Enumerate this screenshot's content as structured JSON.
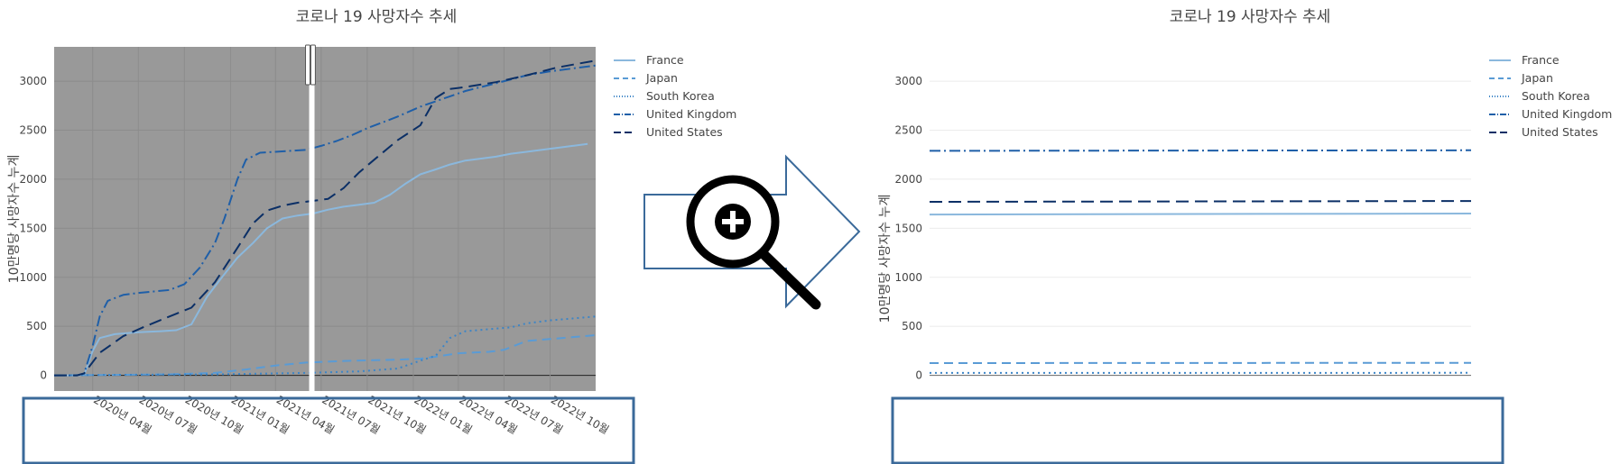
{
  "colors": {
    "background": "#ffffff",
    "plot_bg_left": "#999999",
    "grid_left": "#8c8c8c",
    "grid_right": "#ebebeb",
    "zero_line_left": "#222222",
    "zero_line_right": "#666666",
    "highlight_box": "#3b6a9a",
    "arrow": "#3b6a9a",
    "magnifier": "#000000"
  },
  "icons": [
    "zoom-in-magnifier-icon",
    "right-arrow-icon",
    "range-slider-handle-icon"
  ],
  "chart_data": [
    {
      "id": "full-range",
      "type": "line",
      "title": "코로나 19 사망자수 추세",
      "xlabel": "",
      "ylabel": "10만명당 사망자수 누계",
      "ylim": [
        -160,
        3350
      ],
      "xlim": [
        "2020-01-15",
        "2022-12-31"
      ],
      "yticks": [
        0,
        500,
        1000,
        1500,
        2000,
        2500,
        3000
      ],
      "xticks": [
        "2020-04-01",
        "2020-07-01",
        "2020-10-01",
        "2021-01-01",
        "2021-04-01",
        "2021-07-01",
        "2021-10-01",
        "2022-01-01",
        "2022-04-01",
        "2022-07-01",
        "2022-10-01"
      ],
      "xtick_labels": [
        "2020년 04월",
        "2020년 07월",
        "2020년 10월",
        "2021년 01월",
        "2021년 04월",
        "2021년 07월",
        "2021년 10월",
        "2022년 01월",
        "2022년 04월",
        "2022년 07월",
        "2022년 10월"
      ],
      "plot_background": "grey",
      "grid": true,
      "legend": "right",
      "range_selection": [
        "2021-06-07",
        "2021-06-14"
      ],
      "series": [
        {
          "name": "France",
          "color": "#8bb8dd",
          "dash": "solid",
          "x": [
            "2020-01-15",
            "2020-03-01",
            "2020-03-15",
            "2020-04-01",
            "2020-04-15",
            "2020-05-15",
            "2020-07-01",
            "2020-08-15",
            "2020-09-15",
            "2020-10-15",
            "2020-11-15",
            "2020-12-15",
            "2021-01-15",
            "2021-02-15",
            "2021-03-15",
            "2021-04-15",
            "2021-05-15",
            "2021-06-15",
            "2021-07-15",
            "2021-08-15",
            "2021-09-15",
            "2021-10-15",
            "2021-11-15",
            "2021-12-15",
            "2022-01-15",
            "2022-02-15",
            "2022-03-15",
            "2022-04-15",
            "2022-05-15",
            "2022-06-15",
            "2022-07-15",
            "2022-08-15",
            "2022-09-15",
            "2022-10-15",
            "2022-11-15",
            "2022-12-15"
          ],
          "y": [
            0,
            0,
            5,
            250,
            380,
            420,
            440,
            450,
            460,
            520,
            800,
            1000,
            1200,
            1350,
            1500,
            1600,
            1630,
            1650,
            1690,
            1720,
            1740,
            1760,
            1840,
            1950,
            2050,
            2100,
            2150,
            2190,
            2210,
            2230,
            2260,
            2280,
            2300,
            2320,
            2340,
            2360
          ]
        },
        {
          "name": "Japan",
          "color": "#5a9bd5",
          "dash": "10 6",
          "x": [
            "2020-01-15",
            "2020-06-01",
            "2020-09-01",
            "2020-12-01",
            "2021-02-01",
            "2021-04-01",
            "2021-06-01",
            "2021-09-01",
            "2021-12-01",
            "2022-01-15",
            "2022-02-15",
            "2022-04-01",
            "2022-06-01",
            "2022-07-01",
            "2022-08-15",
            "2022-10-01",
            "2022-12-31"
          ],
          "y": [
            0,
            5,
            10,
            25,
            60,
            100,
            130,
            150,
            160,
            170,
            190,
            225,
            240,
            260,
            350,
            370,
            410
          ]
        },
        {
          "name": "South Korea",
          "color": "#3d85c6",
          "dash": "2 4",
          "x": [
            "2020-01-15",
            "2020-06-01",
            "2020-12-01",
            "2021-06-01",
            "2021-09-15",
            "2021-12-01",
            "2022-01-15",
            "2022-02-15",
            "2022-03-15",
            "2022-04-15",
            "2022-06-01",
            "2022-07-15",
            "2022-08-15",
            "2022-10-01",
            "2022-12-31"
          ],
          "y": [
            0,
            5,
            10,
            25,
            40,
            70,
            150,
            200,
            380,
            450,
            470,
            490,
            530,
            560,
            600
          ]
        },
        {
          "name": "United Kingdom",
          "color": "#1f5fa8",
          "dash": "12 4 2 4",
          "x": [
            "2020-01-15",
            "2020-03-01",
            "2020-03-15",
            "2020-04-01",
            "2020-04-15",
            "2020-05-01",
            "2020-06-01",
            "2020-07-01",
            "2020-08-01",
            "2020-09-01",
            "2020-10-01",
            "2020-11-01",
            "2020-12-01",
            "2020-12-20",
            "2021-01-15",
            "2021-02-01",
            "2021-03-01",
            "2021-04-01",
            "2021-05-01",
            "2021-06-01",
            "2021-07-01",
            "2021-08-01",
            "2021-09-01",
            "2021-10-01",
            "2021-11-01",
            "2021-12-01",
            "2022-01-15",
            "2022-03-01",
            "2022-04-15",
            "2022-06-01",
            "2022-07-01",
            "2022-08-15",
            "2022-10-01",
            "2022-12-31"
          ],
          "y": [
            0,
            0,
            20,
            300,
            600,
            760,
            820,
            840,
            855,
            870,
            930,
            1100,
            1350,
            1600,
            2000,
            2200,
            2270,
            2280,
            2290,
            2300,
            2340,
            2390,
            2450,
            2520,
            2580,
            2640,
            2740,
            2820,
            2900,
            2960,
            3000,
            3060,
            3100,
            3160
          ]
        },
        {
          "name": "United States",
          "color": "#0b2f66",
          "dash": "14 7",
          "x": [
            "2020-01-15",
            "2020-03-01",
            "2020-03-15",
            "2020-04-15",
            "2020-06-01",
            "2020-07-15",
            "2020-09-01",
            "2020-10-15",
            "2020-12-01",
            "2021-01-15",
            "2021-02-15",
            "2021-03-15",
            "2021-04-15",
            "2021-05-15",
            "2021-06-15",
            "2021-07-15",
            "2021-08-15",
            "2021-09-15",
            "2021-10-15",
            "2021-12-01",
            "2022-01-15",
            "2022-02-15",
            "2022-03-15",
            "2022-04-15",
            "2022-06-15",
            "2022-08-15",
            "2022-10-15",
            "2022-12-31"
          ],
          "y": [
            0,
            0,
            20,
            230,
            400,
            500,
            600,
            690,
            950,
            1300,
            1550,
            1680,
            1730,
            1760,
            1780,
            1800,
            1910,
            2070,
            2200,
            2400,
            2550,
            2830,
            2920,
            2940,
            2990,
            3060,
            3140,
            3210
          ]
        }
      ]
    },
    {
      "id": "zoomed-range",
      "type": "line",
      "title": "코로나 19 사망자수 추세",
      "xlabel": "",
      "ylabel": "10만명당 사망자수 누계",
      "ylim": [
        -160,
        3350
      ],
      "yticks": [
        0,
        500,
        1000,
        1500,
        2000,
        2500,
        3000
      ],
      "xlim": [
        "2021-06-07",
        "2021-06-14"
      ],
      "plot_background": "white",
      "grid": true,
      "legend": "right",
      "series": [
        {
          "name": "France",
          "color": "#8bb8dd",
          "dash": "solid",
          "x": [
            "2021-06-07",
            "2021-06-14"
          ],
          "y": [
            1640,
            1650
          ]
        },
        {
          "name": "Japan",
          "color": "#5a9bd5",
          "dash": "10 6",
          "x": [
            "2021-06-07",
            "2021-06-14"
          ],
          "y": [
            125,
            128
          ]
        },
        {
          "name": "South Korea",
          "color": "#3d85c6",
          "dash": "2 4",
          "x": [
            "2021-06-07",
            "2021-06-14"
          ],
          "y": [
            25,
            26
          ]
        },
        {
          "name": "United Kingdom",
          "color": "#1f5fa8",
          "dash": "12 4 2 4",
          "x": [
            "2021-06-07",
            "2021-06-14"
          ],
          "y": [
            2290,
            2295
          ]
        },
        {
          "name": "United States",
          "color": "#0b2f66",
          "dash": "14 7",
          "x": [
            "2021-06-07",
            "2021-06-14"
          ],
          "y": [
            1770,
            1778
          ]
        }
      ]
    }
  ]
}
